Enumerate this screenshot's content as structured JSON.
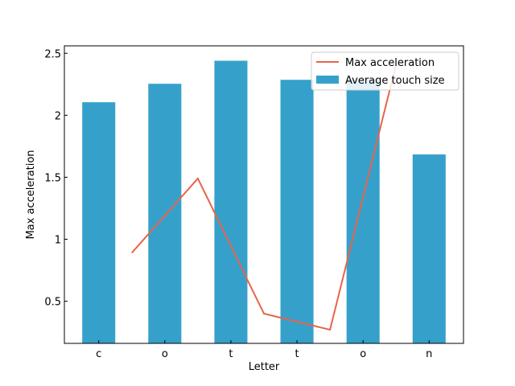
{
  "chart_data": {
    "type": "bar_line",
    "xlabel": "Letter",
    "ylabel": "Max acceleration",
    "categories": [
      "c",
      "o",
      "t",
      "t",
      "o",
      "n"
    ],
    "xlim": [
      -0.52,
      5.52
    ],
    "ylim": [
      0.16,
      2.56
    ],
    "yticks": [
      0.5,
      1.0,
      1.5,
      2.0,
      2.5
    ],
    "bar_width": 0.5,
    "legend": "upper right",
    "series": [
      {
        "name": "Max acceleration",
        "type": "line",
        "color": "#e8644a",
        "x": [
          0.5,
          1.5,
          2.5,
          3.5,
          4.5
        ],
        "values": [
          0.89,
          1.49,
          0.4,
          0.27,
          2.41
        ]
      },
      {
        "name": "Average touch size",
        "type": "bar",
        "color": "#35a1cb",
        "values": [
          2.105,
          2.254,
          2.44,
          2.286,
          2.29,
          1.684
        ]
      }
    ]
  }
}
